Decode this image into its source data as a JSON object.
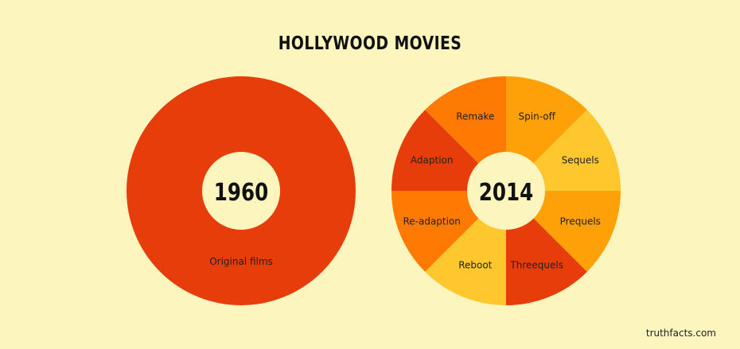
{
  "title": "HOLLYWOOD MOVIES",
  "source": "truthfacts.com",
  "chart_data": [
    {
      "type": "pie",
      "center_label": "1960",
      "categories": [
        "Original films"
      ],
      "values": [
        1
      ],
      "colors": [
        "#e73d0b"
      ]
    },
    {
      "type": "pie",
      "center_label": "2014",
      "categories": [
        "Spin-off",
        "Sequels",
        "Prequels",
        "Threequels",
        "Reboot",
        "Re-adaption",
        "Adaption",
        "Remake"
      ],
      "values": [
        1,
        1,
        1,
        1,
        1,
        1,
        1,
        1
      ],
      "colors": [
        "#fea008",
        "#fec72e",
        "#fea008",
        "#e73d0b",
        "#fec72e",
        "#fe7a02",
        "#e73d0b",
        "#fe7a02"
      ]
    }
  ]
}
